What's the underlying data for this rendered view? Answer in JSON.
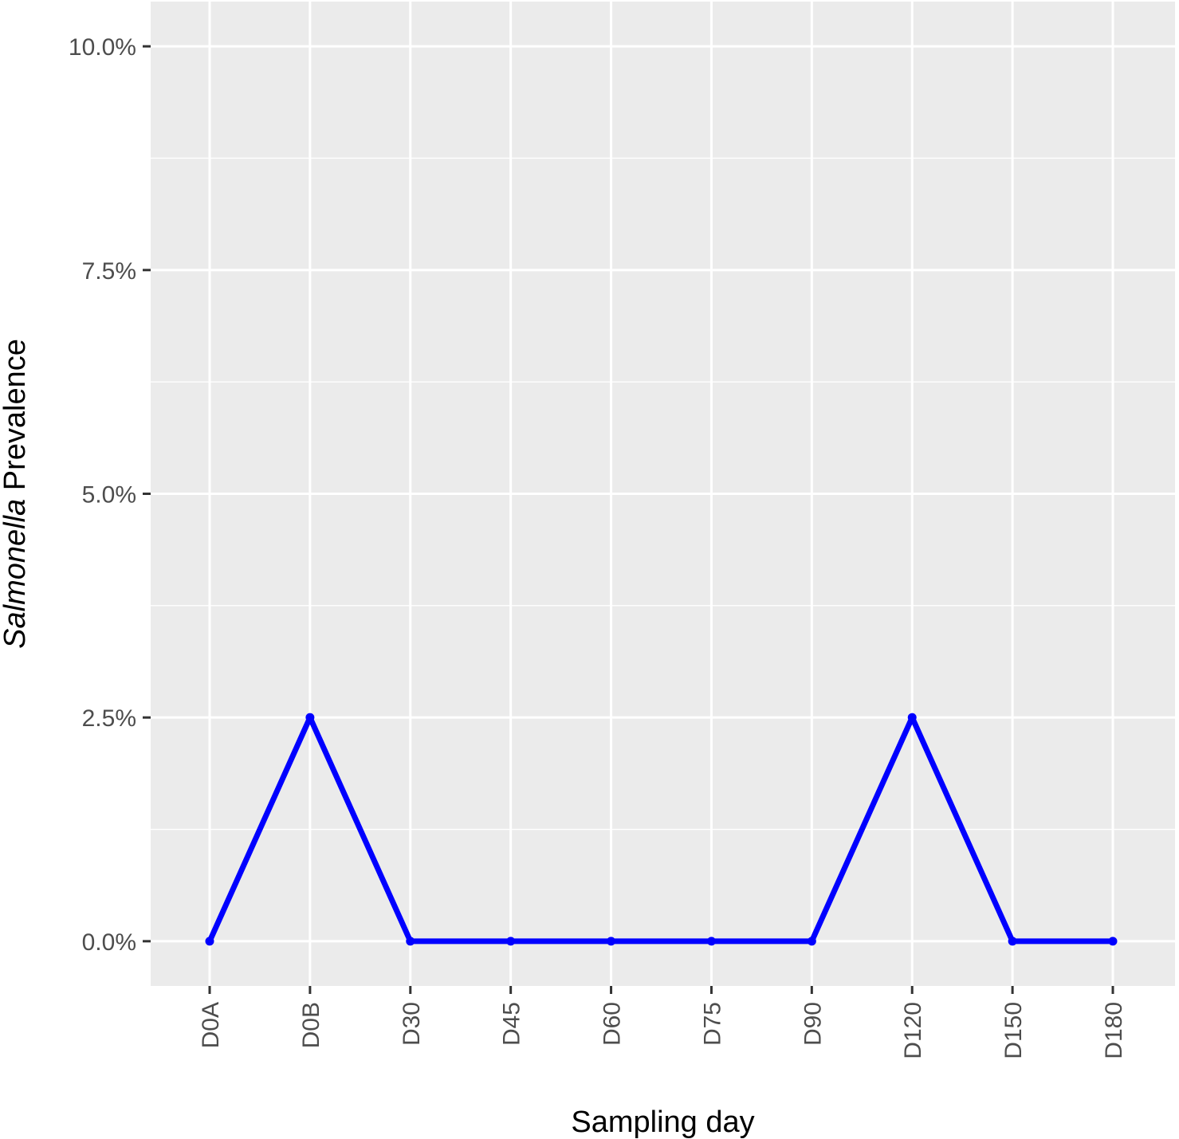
{
  "chart_data": {
    "type": "line",
    "categories": [
      "D0A",
      "D0B",
      "D30",
      "D45",
      "D60",
      "D75",
      "D90",
      "D120",
      "D150",
      "D180"
    ],
    "values": [
      0.0,
      2.5,
      0.0,
      0.0,
      0.0,
      0.0,
      0.0,
      2.5,
      0.0,
      0.0
    ],
    "xlabel": "Sampling day",
    "ylabel_italic": "Salmonella",
    "ylabel_rest": " Prevalence",
    "ylim": [
      -0.5,
      10.5
    ],
    "y_ticks": [
      0.0,
      2.5,
      5.0,
      7.5,
      10.0
    ],
    "y_tick_labels": [
      "0.0%",
      "2.5%",
      "5.0%",
      "7.5%",
      "10.0%"
    ],
    "y_minor_ticks": [
      1.25,
      3.75,
      6.25,
      8.75
    ],
    "grid": true,
    "colors": {
      "line": "#0000ff",
      "panel": "#ebebeb",
      "grid": "#ffffff"
    }
  }
}
